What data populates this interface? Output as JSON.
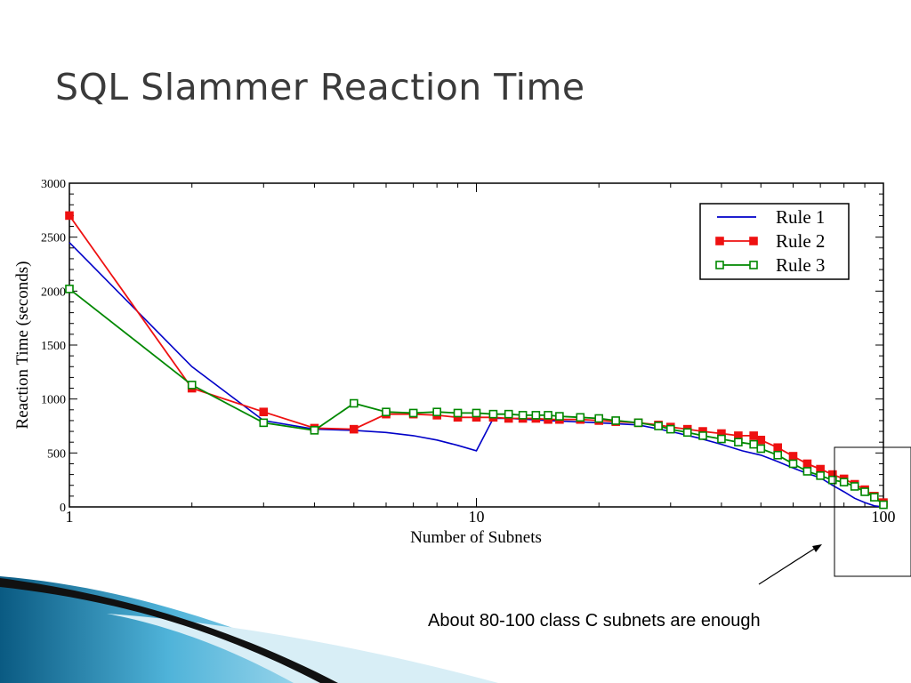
{
  "slide": {
    "title": "SQL Slammer Reaction Time",
    "annotation": "About 80-100 class C subnets are enough"
  },
  "colors": {
    "title_text": "#3a3a3a",
    "rule1": "#0000c8",
    "rule2": "#ee1111",
    "rule3": "#008800",
    "swoosh_light": "#4fb3d9",
    "swoosh_dark": "#0a5a82"
  },
  "chart_data": {
    "type": "line",
    "xlabel": "Number of Subnets",
    "ylabel": "Reaction Time (seconds)",
    "x_scale": "log",
    "xlim": [
      1,
      100
    ],
    "ylim": [
      0,
      3000
    ],
    "x_ticks": [
      1,
      10,
      100
    ],
    "x_tick_labels": [
      "1",
      "10",
      "100"
    ],
    "y_ticks": [
      0,
      500,
      1000,
      1500,
      2000,
      2500,
      3000
    ],
    "y_tick_labels": [
      "0",
      "500",
      "1000",
      "1500",
      "2000",
      "2500",
      "3000"
    ],
    "grid": false,
    "legend_position": "top-right",
    "series": [
      {
        "name": "Rule 1",
        "marker": "none",
        "x": [
          1,
          2,
          3,
          4,
          5,
          6,
          7,
          8,
          9,
          10,
          11,
          12,
          15,
          20,
          25,
          30,
          35,
          40,
          45,
          50,
          55,
          60,
          65,
          70,
          75,
          80,
          85,
          90,
          95,
          100
        ],
        "y": [
          2450,
          1300,
          800,
          720,
          710,
          690,
          660,
          620,
          570,
          520,
          820,
          820,
          800,
          780,
          760,
          700,
          640,
          580,
          520,
          480,
          420,
          360,
          310,
          270,
          200,
          140,
          80,
          40,
          10,
          0
        ]
      },
      {
        "name": "Rule 2",
        "marker": "filled-square",
        "x": [
          1,
          2,
          3,
          4,
          5,
          6,
          7,
          8,
          9,
          10,
          11,
          12,
          13,
          14,
          15,
          16,
          18,
          20,
          22,
          25,
          28,
          30,
          33,
          36,
          40,
          44,
          48,
          50,
          55,
          60,
          65,
          70,
          75,
          80,
          85,
          90,
          95,
          100
        ],
        "y": [
          2700,
          1100,
          880,
          730,
          720,
          860,
          860,
          850,
          830,
          830,
          830,
          820,
          820,
          820,
          810,
          810,
          810,
          800,
          790,
          780,
          760,
          740,
          720,
          700,
          680,
          660,
          660,
          620,
          550,
          470,
          400,
          350,
          300,
          260,
          210,
          160,
          100,
          40
        ]
      },
      {
        "name": "Rule 3",
        "marker": "open-square",
        "x": [
          1,
          2,
          3,
          4,
          5,
          6,
          7,
          8,
          9,
          10,
          11,
          12,
          13,
          14,
          15,
          16,
          18,
          20,
          22,
          25,
          28,
          30,
          33,
          36,
          40,
          44,
          48,
          50,
          55,
          60,
          65,
          70,
          75,
          80,
          85,
          90,
          95,
          100
        ],
        "y": [
          2020,
          1130,
          780,
          710,
          960,
          880,
          870,
          880,
          870,
          870,
          860,
          860,
          850,
          850,
          850,
          840,
          830,
          820,
          800,
          780,
          750,
          720,
          690,
          660,
          630,
          600,
          580,
          540,
          480,
          400,
          330,
          290,
          250,
          230,
          190,
          140,
          90,
          20
        ]
      }
    ]
  }
}
